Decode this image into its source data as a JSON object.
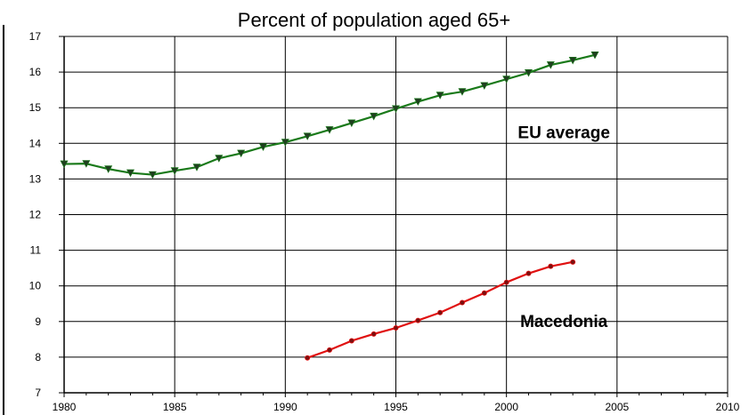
{
  "chart_data": {
    "type": "line",
    "title": "Percent of population aged 65+",
    "xlabel": "",
    "ylabel": "",
    "xlim": [
      1980,
      2010
    ],
    "ylim": [
      7,
      17
    ],
    "xticks": [
      1980,
      1985,
      1990,
      1995,
      2000,
      2005,
      2010
    ],
    "yticks": [
      7,
      8,
      9,
      10,
      11,
      12,
      13,
      14,
      15,
      16,
      17
    ],
    "grid": true,
    "legend": "none",
    "series": [
      {
        "label": "EU average",
        "color": "#1a7a1a",
        "marker": "triangle-down",
        "x": [
          1980,
          1981,
          1982,
          1983,
          1984,
          1985,
          1986,
          1987,
          1988,
          1989,
          1990,
          1991,
          1992,
          1993,
          1994,
          1995,
          1996,
          1997,
          1998,
          1999,
          2000,
          2001,
          2002,
          2003,
          2004
        ],
        "y": [
          13.42,
          13.43,
          13.28,
          13.17,
          13.12,
          13.23,
          13.33,
          13.58,
          13.72,
          13.9,
          14.03,
          14.2,
          14.38,
          14.57,
          14.76,
          14.97,
          15.17,
          15.35,
          15.45,
          15.62,
          15.8,
          15.98,
          16.2,
          16.33,
          16.48
        ]
      },
      {
        "label": "Macedonia",
        "color": "#e01010",
        "marker": "circle",
        "x": [
          1991,
          1992,
          1993,
          1994,
          1995,
          1996,
          1997,
          1998,
          1999,
          2000,
          2001,
          2002,
          2003
        ],
        "y": [
          7.98,
          8.2,
          8.46,
          8.65,
          8.82,
          9.03,
          9.25,
          9.53,
          9.8,
          10.1,
          10.35,
          10.55,
          10.67
        ]
      }
    ],
    "annotations": [
      {
        "text": "EU average",
        "x": 2003,
        "y": 14.35
      },
      {
        "text": "Macedonia",
        "x": 2003,
        "y": 9.05
      }
    ]
  }
}
